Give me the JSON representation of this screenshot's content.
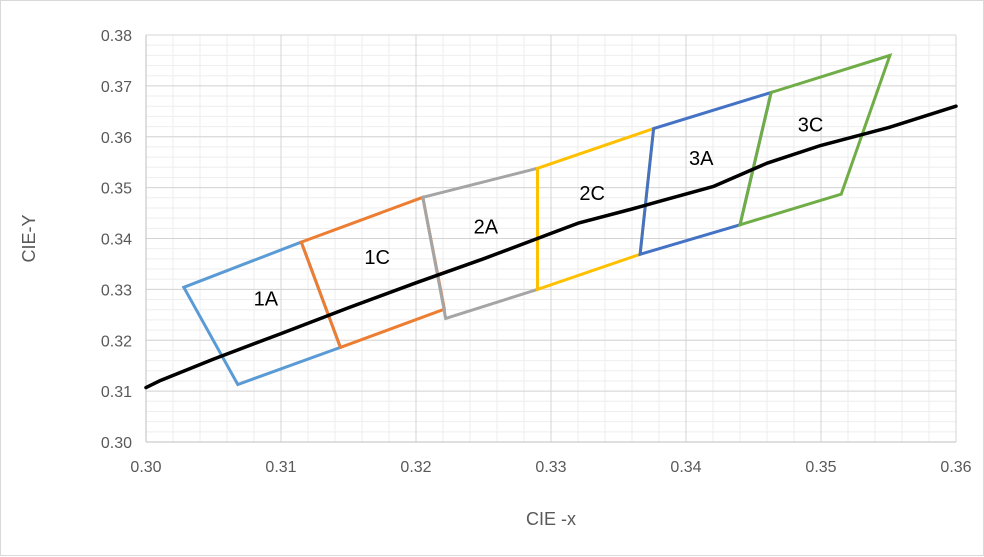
{
  "chart_data": {
    "type": "line",
    "xlabel": "CIE -x",
    "ylabel": "CIE-Y",
    "xlim": [
      0.3,
      0.36
    ],
    "ylim": [
      0.3,
      0.38
    ],
    "x_ticks": [
      "0.30",
      "0.31",
      "0.32",
      "0.33",
      "0.34",
      "0.35",
      "0.36"
    ],
    "y_ticks": [
      "0.30",
      "0.31",
      "0.32",
      "0.33",
      "0.34",
      "0.35",
      "0.36",
      "0.37",
      "0.38"
    ],
    "grid": true,
    "legend": "none",
    "series": [
      {
        "label": "1A",
        "color": "#5b9bd5",
        "points": [
          [
            0.3028,
            0.3304
          ],
          [
            0.3115,
            0.3393
          ],
          [
            0.3144,
            0.3186
          ],
          [
            0.3068,
            0.3113
          ]
        ]
      },
      {
        "label": "1C",
        "color": "#ed7d31",
        "points": [
          [
            0.3115,
            0.3393
          ],
          [
            0.3205,
            0.3481
          ],
          [
            0.3221,
            0.3261
          ],
          [
            0.3144,
            0.3186
          ]
        ]
      },
      {
        "label": "2A",
        "color": "#a5a5a5",
        "points": [
          [
            0.3205,
            0.3481
          ],
          [
            0.329,
            0.3538
          ],
          [
            0.329,
            0.33
          ],
          [
            0.3222,
            0.3243
          ]
        ]
      },
      {
        "label": "2C",
        "color": "#ffc000",
        "points": [
          [
            0.329,
            0.3538
          ],
          [
            0.3376,
            0.3616
          ],
          [
            0.3366,
            0.3369
          ],
          [
            0.329,
            0.33
          ]
        ]
      },
      {
        "label": "3A",
        "color": "#4472c4",
        "points": [
          [
            0.3376,
            0.3616
          ],
          [
            0.3463,
            0.3687
          ],
          [
            0.344,
            0.3427
          ],
          [
            0.3366,
            0.3369
          ]
        ]
      },
      {
        "label": "3C",
        "color": "#70ad47",
        "points": [
          [
            0.3463,
            0.3687
          ],
          [
            0.3551,
            0.376
          ],
          [
            0.3515,
            0.3487
          ],
          [
            0.344,
            0.3427
          ]
        ]
      }
    ],
    "curve": {
      "color": "#000000",
      "points": [
        [
          0.3,
          0.3107
        ],
        [
          0.301,
          0.312
        ],
        [
          0.305,
          0.3163
        ],
        [
          0.31,
          0.3213
        ],
        [
          0.315,
          0.3264
        ],
        [
          0.32,
          0.3313
        ],
        [
          0.325,
          0.336
        ],
        [
          0.33,
          0.341
        ],
        [
          0.332,
          0.343
        ],
        [
          0.336,
          0.3458
        ],
        [
          0.338,
          0.3473
        ],
        [
          0.342,
          0.3502
        ],
        [
          0.346,
          0.3548
        ],
        [
          0.35,
          0.3583
        ],
        [
          0.355,
          0.3618
        ],
        [
          0.36,
          0.366
        ]
      ]
    }
  }
}
